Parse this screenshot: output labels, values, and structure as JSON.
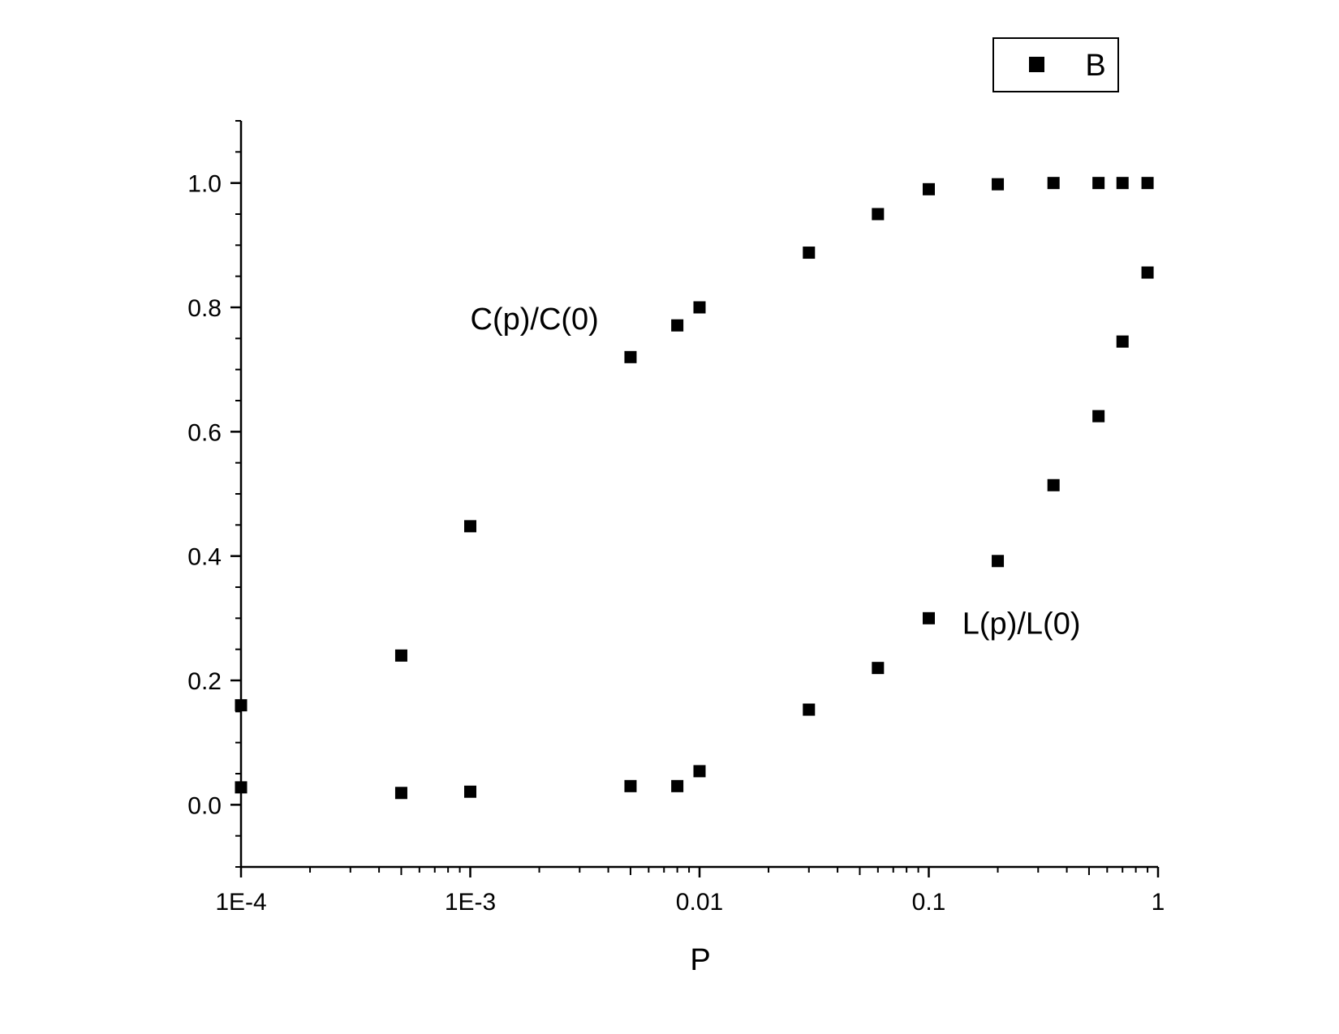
{
  "chart_data": {
    "type": "scatter",
    "title": "",
    "xlabel": "P",
    "ylabel": "",
    "x_scale": "log",
    "xlim": [
      0.0001,
      1
    ],
    "ylim": [
      -0.1,
      1.1
    ],
    "x_ticks": [
      {
        "value": 0.0001,
        "label": "1E-4"
      },
      {
        "value": 0.001,
        "label": "1E-3"
      },
      {
        "value": 0.01,
        "label": "0.01"
      },
      {
        "value": 0.1,
        "label": "0.1"
      },
      {
        "value": 1,
        "label": "1"
      }
    ],
    "y_ticks": [
      {
        "value": 0.0,
        "label": "0.0"
      },
      {
        "value": 0.2,
        "label": "0.2"
      },
      {
        "value": 0.4,
        "label": "0.4"
      },
      {
        "value": 0.6,
        "label": "0.6"
      },
      {
        "value": 0.8,
        "label": "0.8"
      },
      {
        "value": 1.0,
        "label": "1.0"
      }
    ],
    "grid": false,
    "legend": {
      "position": "top-right",
      "entries": [
        "B"
      ]
    },
    "series": [
      {
        "name": "B",
        "marker": "square",
        "color": "#000000",
        "points": [
          {
            "x": 0.0001,
            "y": 0.16
          },
          {
            "x": 0.0005,
            "y": 0.24
          },
          {
            "x": 0.001,
            "y": 0.448
          },
          {
            "x": 0.005,
            "y": 0.72
          },
          {
            "x": 0.008,
            "y": 0.771
          },
          {
            "x": 0.01,
            "y": 0.8
          },
          {
            "x": 0.03,
            "y": 0.888
          },
          {
            "x": 0.06,
            "y": 0.95
          },
          {
            "x": 0.1,
            "y": 0.99
          },
          {
            "x": 0.2,
            "y": 0.998
          },
          {
            "x": 0.35,
            "y": 1.0
          },
          {
            "x": 0.55,
            "y": 1.0
          },
          {
            "x": 0.7,
            "y": 1.0
          },
          {
            "x": 0.9,
            "y": 1.0
          },
          {
            "x": 0.0001,
            "y": 0.028
          },
          {
            "x": 0.0005,
            "y": 0.019
          },
          {
            "x": 0.001,
            "y": 0.021
          },
          {
            "x": 0.005,
            "y": 0.03
          },
          {
            "x": 0.008,
            "y": 0.03
          },
          {
            "x": 0.01,
            "y": 0.054
          },
          {
            "x": 0.03,
            "y": 0.153
          },
          {
            "x": 0.06,
            "y": 0.22
          },
          {
            "x": 0.1,
            "y": 0.3
          },
          {
            "x": 0.2,
            "y": 0.392
          },
          {
            "x": 0.35,
            "y": 0.514
          },
          {
            "x": 0.55,
            "y": 0.625
          },
          {
            "x": 0.7,
            "y": 0.745
          },
          {
            "x": 0.9,
            "y": 0.856
          }
        ]
      }
    ],
    "annotations": [
      {
        "text": "C(p)/C(0)",
        "x": 0.001,
        "y": 0.765
      },
      {
        "text": "L(p)/L(0)",
        "x": 0.14,
        "y": 0.275
      }
    ]
  }
}
